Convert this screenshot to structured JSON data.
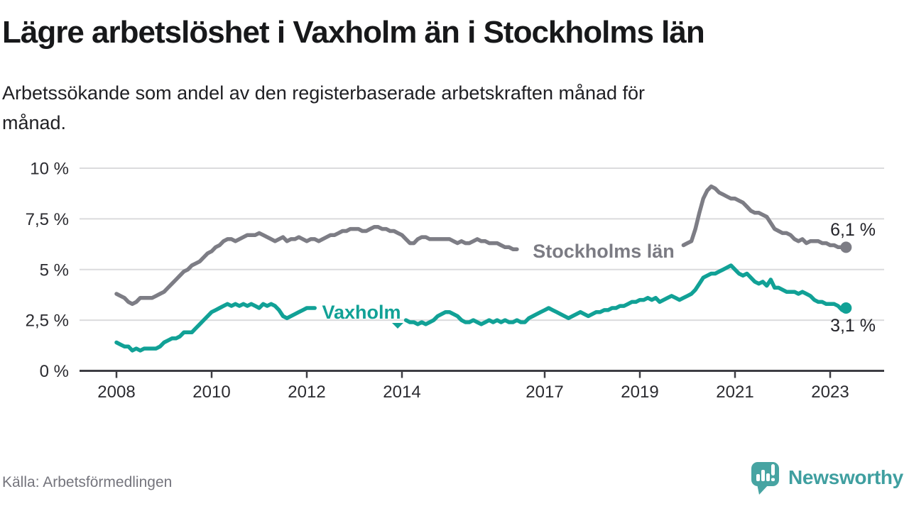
{
  "title": "Lägre arbetslöshet i Vaxholm än i Stockholms län",
  "subtitle": {
    "line1": "Arbetssökande som andel av den registerbaserade arbetskraften månad för",
    "line2": "månad."
  },
  "source": "Källa: Arbetsförmedlingen",
  "brand": {
    "name": "Newsworthy",
    "icon": "speech-bubble-bar-chart-icon",
    "color": "#47a4a2"
  },
  "chart_data": {
    "type": "line",
    "title": "Lägre arbetslöshet i Vaxholm än i Stockholms län",
    "unit": "%",
    "frequency": "monthly",
    "start": "2008-01",
    "end": "2023-05",
    "start_year": 2008,
    "ylim": [
      0,
      10
    ],
    "grid": "horizontal",
    "legend_position": "inline-labels",
    "y_ticks": [
      {
        "value": 10,
        "label": "10 %"
      },
      {
        "value": 7.5,
        "label": "7,5 %"
      },
      {
        "value": 5,
        "label": "5 %"
      },
      {
        "value": 2.5,
        "label": "2,5 %"
      },
      {
        "value": 0,
        "label": "0 %"
      }
    ],
    "x_ticks": [
      {
        "year": 2008,
        "label": "2008"
      },
      {
        "year": 2010,
        "label": "2010"
      },
      {
        "year": 2012,
        "label": "2012"
      },
      {
        "year": 2014,
        "label": "2014"
      },
      {
        "year": 2017,
        "label": "2017"
      },
      {
        "year": 2019,
        "label": "2019"
      },
      {
        "year": 2021,
        "label": "2021"
      },
      {
        "year": 2023,
        "label": "2023"
      }
    ],
    "series": [
      {
        "name": "Stockholms län",
        "color": "#7d7d85",
        "end_label": "6,1 %",
        "end_value": 6.1,
        "values": [
          3.8,
          3.7,
          3.6,
          3.4,
          3.3,
          3.4,
          3.6,
          3.6,
          3.6,
          3.6,
          3.7,
          3.8,
          3.9,
          4.1,
          4.3,
          4.5,
          4.7,
          4.9,
          5.0,
          5.2,
          5.3,
          5.4,
          5.6,
          5.8,
          5.9,
          6.1,
          6.2,
          6.4,
          6.5,
          6.5,
          6.4,
          6.5,
          6.6,
          6.7,
          6.7,
          6.7,
          6.8,
          6.7,
          6.6,
          6.5,
          6.4,
          6.5,
          6.6,
          6.4,
          6.5,
          6.5,
          6.6,
          6.5,
          6.4,
          6.5,
          6.5,
          6.4,
          6.5,
          6.6,
          6.7,
          6.7,
          6.8,
          6.9,
          6.9,
          7.0,
          7.0,
          7.0,
          6.9,
          6.9,
          7.0,
          7.1,
          7.1,
          7.0,
          7.0,
          6.9,
          6.9,
          6.8,
          6.7,
          6.5,
          6.3,
          6.3,
          6.5,
          6.6,
          6.6,
          6.5,
          6.5,
          6.5,
          6.5,
          6.5,
          6.5,
          6.4,
          6.3,
          6.4,
          6.3,
          6.3,
          6.4,
          6.5,
          6.4,
          6.4,
          6.3,
          6.3,
          6.3,
          6.2,
          6.1,
          6.1,
          6.0,
          6.0,
          6.0,
          6.0,
          6.0,
          6.0,
          6.0,
          6.0,
          6.0,
          6.0,
          6.0,
          5.9,
          5.9,
          5.9,
          5.9,
          5.9,
          5.9,
          5.9,
          5.9,
          5.9,
          5.9,
          5.9,
          5.9,
          5.9,
          5.9,
          5.9,
          5.9,
          5.9,
          6.0,
          6.0,
          6.0,
          6.0,
          6.0,
          6.0,
          6.0,
          6.0,
          6.1,
          6.1,
          6.1,
          6.1,
          6.1,
          6.2,
          6.2,
          6.2,
          6.3,
          6.4,
          7.0,
          7.8,
          8.5,
          8.9,
          9.1,
          9.0,
          8.8,
          8.7,
          8.6,
          8.5,
          8.5,
          8.4,
          8.3,
          8.1,
          7.9,
          7.8,
          7.8,
          7.7,
          7.6,
          7.3,
          7.0,
          6.9,
          6.8,
          6.8,
          6.7,
          6.5,
          6.4,
          6.5,
          6.3,
          6.4,
          6.4,
          6.4,
          6.3,
          6.3,
          6.2,
          6.2,
          6.1,
          6.1,
          6.1
        ]
      },
      {
        "name": "Vaxholm",
        "color": "#11a196",
        "end_label": "3,1 %",
        "end_value": 3.1,
        "values": [
          1.4,
          1.3,
          1.2,
          1.2,
          1.0,
          1.1,
          1.0,
          1.1,
          1.1,
          1.1,
          1.1,
          1.2,
          1.4,
          1.5,
          1.6,
          1.6,
          1.7,
          1.9,
          1.9,
          1.9,
          2.1,
          2.3,
          2.5,
          2.7,
          2.9,
          3.0,
          3.1,
          3.2,
          3.3,
          3.2,
          3.3,
          3.2,
          3.3,
          3.2,
          3.3,
          3.2,
          3.1,
          3.3,
          3.2,
          3.3,
          3.2,
          3.0,
          2.7,
          2.6,
          2.7,
          2.8,
          2.9,
          3.0,
          3.1,
          3.1,
          3.1,
          3.0,
          2.9,
          2.8,
          2.7,
          2.6,
          2.5,
          2.4,
          2.4,
          2.3,
          2.3,
          2.3,
          2.4,
          2.3,
          2.3,
          2.4,
          2.3,
          2.3,
          2.4,
          2.3,
          2.4,
          2.4,
          2.4,
          2.5,
          2.4,
          2.4,
          2.3,
          2.4,
          2.3,
          2.4,
          2.5,
          2.7,
          2.8,
          2.9,
          2.9,
          2.8,
          2.7,
          2.5,
          2.4,
          2.4,
          2.5,
          2.4,
          2.3,
          2.4,
          2.5,
          2.4,
          2.5,
          2.4,
          2.5,
          2.4,
          2.4,
          2.5,
          2.4,
          2.4,
          2.6,
          2.7,
          2.8,
          2.9,
          3.0,
          3.1,
          3.0,
          2.9,
          2.8,
          2.7,
          2.6,
          2.7,
          2.8,
          2.9,
          2.8,
          2.7,
          2.8,
          2.9,
          2.9,
          3.0,
          3.0,
          3.1,
          3.1,
          3.2,
          3.2,
          3.3,
          3.4,
          3.4,
          3.5,
          3.5,
          3.6,
          3.5,
          3.6,
          3.4,
          3.5,
          3.6,
          3.7,
          3.6,
          3.5,
          3.6,
          3.7,
          3.8,
          4.0,
          4.3,
          4.6,
          4.7,
          4.8,
          4.8,
          4.9,
          5.0,
          5.1,
          5.2,
          5.0,
          4.8,
          4.7,
          4.8,
          4.6,
          4.4,
          4.3,
          4.4,
          4.2,
          4.5,
          4.1,
          4.1,
          4.0,
          3.9,
          3.9,
          3.9,
          3.8,
          3.9,
          3.8,
          3.7,
          3.5,
          3.4,
          3.4,
          3.3,
          3.3,
          3.3,
          3.2,
          3.0,
          3.1
        ]
      }
    ]
  }
}
